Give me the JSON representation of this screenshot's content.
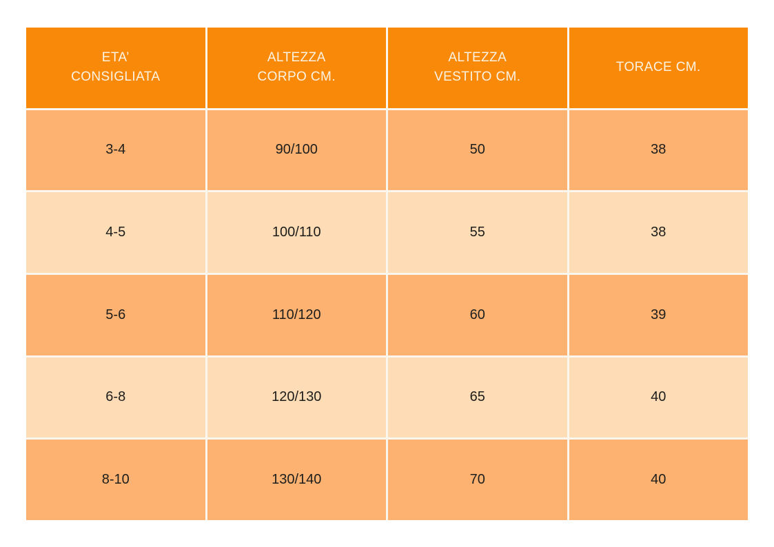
{
  "colors": {
    "header_bg": "#f98908",
    "row_medium_bg": "#fdb271",
    "row_light_bg": "#fedcb5",
    "grid_line": "#fcf7ee",
    "header_text": "#fbf3e4",
    "body_text": "#1d1d1b",
    "page_bg": "#ffffff"
  },
  "chart_data": {
    "type": "table",
    "title": "",
    "columns": [
      "ETA’ CONSIGLIATA",
      "ALTEZZA CORPO CM.",
      "ALTEZZA VESTITO CM.",
      "TORACE CM."
    ],
    "rows": [
      [
        "3-4",
        "90/100",
        "50",
        "38"
      ],
      [
        "4-5",
        "100/110",
        "55",
        "38"
      ],
      [
        "5-6",
        "110/120",
        "60",
        "39"
      ],
      [
        "6-8",
        "120/130",
        "65",
        "40"
      ],
      [
        "8-10",
        "130/140",
        "70",
        "40"
      ]
    ],
    "layout_hints": {
      "header_text_color": "white",
      "row_shading_pattern": [
        "medium",
        "light",
        "medium",
        "light",
        "medium"
      ],
      "grid": "white gaps between all cells",
      "columns_equal_width": true
    }
  },
  "table": {
    "headers": [
      {
        "label": "ETA’\nCONSIGLIATA"
      },
      {
        "label": "ALTEZZA\nCORPO CM."
      },
      {
        "label": "ALTEZZA\nVESTITO CM."
      },
      {
        "label": "TORACE CM."
      }
    ]
  }
}
